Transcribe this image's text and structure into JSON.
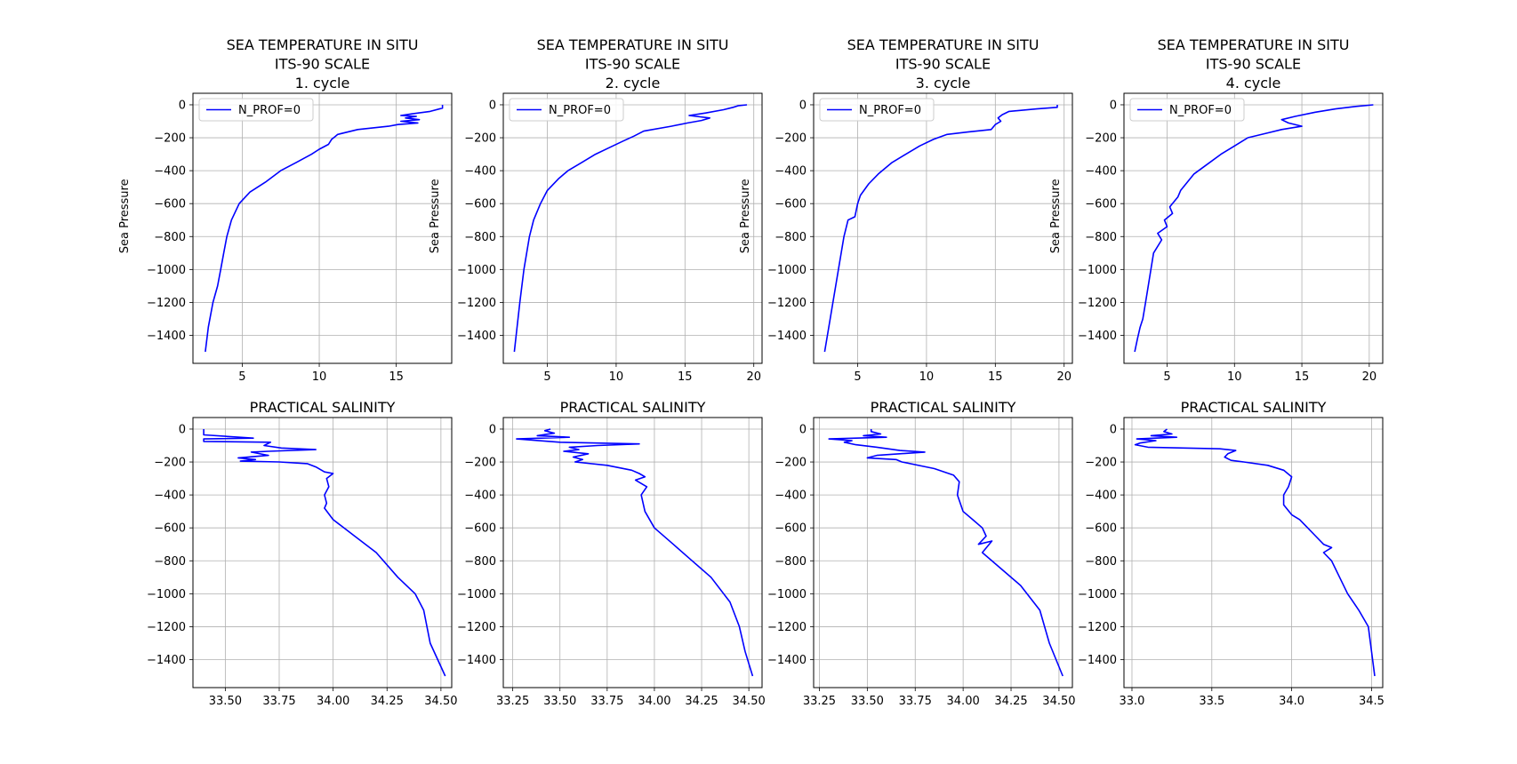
{
  "colors": {
    "line": "#0000ff",
    "grid": "#b0b0b0",
    "legend_border": "#cccccc"
  },
  "chart_data": [
    {
      "type": "line",
      "title": [
        "SEA TEMPERATURE IN SITU",
        "ITS-90 SCALE",
        "1. cycle"
      ],
      "ylabel": "Sea Pressure",
      "xlim": [
        1.8,
        18.6
      ],
      "ylim": [
        -1570,
        70
      ],
      "xticks": [
        5,
        10,
        15
      ],
      "xticklabels": [
        "5",
        "10",
        "15"
      ],
      "yticks": [
        0,
        -200,
        -400,
        -600,
        -800,
        -1000,
        -1200,
        -1400
      ],
      "yticklabels": [
        "0",
        "−200",
        "−400",
        "−600",
        "−800",
        "−1000",
        "−1200",
        "−1400"
      ],
      "legend": "N_PROF=0",
      "series": [
        {
          "name": "N_PROF=0",
          "x": [
            18.0,
            18.0,
            17.2,
            16.0,
            15.3,
            16.3,
            15.6,
            16.5,
            15.3,
            16.4,
            15.1,
            14.5,
            12.5,
            11.2,
            11.0,
            10.8,
            10.6,
            10.0,
            9.5,
            8.5,
            7.5,
            6.5,
            5.5,
            4.8,
            4.3,
            4.0,
            3.8,
            3.6,
            3.4,
            3.1,
            2.8,
            2.6
          ],
          "y": [
            0,
            -20,
            -40,
            -55,
            -65,
            -70,
            -80,
            -90,
            -100,
            -110,
            -120,
            -130,
            -150,
            -180,
            -195,
            -210,
            -240,
            -270,
            -300,
            -350,
            -400,
            -470,
            -530,
            -600,
            -700,
            -800,
            -900,
            -1000,
            -1100,
            -1200,
            -1350,
            -1500
          ]
        }
      ]
    },
    {
      "type": "line",
      "title": [
        "SEA TEMPERATURE IN SITU",
        "ITS-90 SCALE",
        "2. cycle"
      ],
      "ylabel": "Sea Pressure",
      "xlim": [
        1.8,
        20.6
      ],
      "ylim": [
        -1570,
        70
      ],
      "xticks": [
        5,
        10,
        15,
        20
      ],
      "xticklabels": [
        "5",
        "10",
        "15",
        "20"
      ],
      "yticks": [
        0,
        -200,
        -400,
        -600,
        -800,
        -1000,
        -1200,
        -1400
      ],
      "yticklabels": [
        "0",
        "−200",
        "−400",
        "−600",
        "−800",
        "−1000",
        "−1200",
        "−1400"
      ],
      "legend": "N_PROF=0",
      "series": [
        {
          "name": "N_PROF=0",
          "x": [
            19.5,
            18.9,
            18.5,
            17.8,
            16.5,
            15.3,
            16.8,
            16.2,
            15.2,
            14.0,
            12.0,
            11.3,
            10.5,
            9.5,
            8.5,
            7.5,
            6.5,
            5.8,
            5.0,
            4.5,
            4.0,
            3.7,
            3.5,
            3.3,
            3.0,
            2.8,
            2.6
          ],
          "y": [
            0,
            -5,
            -15,
            -30,
            -50,
            -65,
            -80,
            -95,
            -110,
            -130,
            -160,
            -190,
            -220,
            -260,
            -300,
            -350,
            -400,
            -450,
            -520,
            -600,
            -700,
            -800,
            -900,
            -1000,
            -1200,
            -1350,
            -1500
          ]
        }
      ]
    },
    {
      "type": "line",
      "title": [
        "SEA TEMPERATURE IN SITU",
        "ITS-90 SCALE",
        "3. cycle"
      ],
      "ylabel": "Sea Pressure",
      "xlim": [
        1.8,
        20.6
      ],
      "ylim": [
        -1570,
        70
      ],
      "xticks": [
        5,
        10,
        15,
        20
      ],
      "xticklabels": [
        "5",
        "10",
        "15",
        "20"
      ],
      "yticks": [
        0,
        -200,
        -400,
        -600,
        -800,
        -1000,
        -1200,
        -1400
      ],
      "yticklabels": [
        "0",
        "−200",
        "−400",
        "−600",
        "−800",
        "−1000",
        "−1200",
        "−1400"
      ],
      "legend": "N_PROF=0",
      "series": [
        {
          "name": "N_PROF=0",
          "x": [
            19.5,
            19.5,
            18.0,
            16.0,
            15.5,
            15.2,
            15.4,
            15.0,
            14.7,
            13.0,
            11.5,
            10.5,
            9.5,
            8.5,
            7.5,
            6.5,
            5.8,
            5.2,
            5.0,
            4.8,
            4.3,
            4.0,
            3.8,
            3.6,
            3.4,
            3.2,
            3.0,
            2.8,
            2.6
          ],
          "y": [
            0,
            -15,
            -25,
            -40,
            -60,
            -80,
            -100,
            -120,
            -150,
            -165,
            -180,
            -210,
            -250,
            -300,
            -350,
            -420,
            -480,
            -550,
            -600,
            -680,
            -700,
            -800,
            -900,
            -1000,
            -1100,
            -1200,
            -1300,
            -1400,
            -1500
          ]
        }
      ]
    },
    {
      "type": "line",
      "title": [
        "SEA TEMPERATURE IN SITU",
        "ITS-90 SCALE",
        "4. cycle"
      ],
      "ylabel": "Sea Pressure",
      "xlim": [
        1.8,
        21.0
      ],
      "ylim": [
        -1570,
        70
      ],
      "xticks": [
        5,
        10,
        15,
        20
      ],
      "xticklabels": [
        "5",
        "10",
        "15",
        "20"
      ],
      "yticks": [
        0,
        -200,
        -400,
        -600,
        -800,
        -1000,
        -1200,
        -1400
      ],
      "yticklabels": [
        "0",
        "−200",
        "−400",
        "−600",
        "−800",
        "−1000",
        "−1200",
        "−1400"
      ],
      "legend": "N_PROF=0",
      "series": [
        {
          "name": "N_PROF=0",
          "x": [
            20.3,
            19.0,
            17.5,
            16.0,
            14.5,
            13.5,
            14.0,
            15.0,
            13.5,
            12.5,
            11.0,
            10.0,
            9.0,
            8.0,
            7.0,
            6.5,
            6.0,
            5.8,
            5.2,
            5.4,
            4.8,
            5.0,
            4.3,
            4.6,
            4.0,
            3.8,
            3.6,
            3.4,
            3.2,
            3.0,
            2.8,
            2.6
          ],
          "y": [
            0,
            -10,
            -25,
            -45,
            -70,
            -90,
            -110,
            -130,
            -150,
            -170,
            -200,
            -250,
            -300,
            -360,
            -420,
            -470,
            -520,
            -560,
            -620,
            -660,
            -700,
            -740,
            -780,
            -820,
            -900,
            -1000,
            -1100,
            -1200,
            -1300,
            -1350,
            -1420,
            -1500
          ]
        }
      ]
    },
    {
      "type": "line",
      "title": [
        "PRACTICAL SALINITY"
      ],
      "xlim": [
        33.35,
        34.55
      ],
      "ylim": [
        -1570,
        70
      ],
      "xticks": [
        33.5,
        33.75,
        34.0,
        34.25,
        34.5
      ],
      "xticklabels": [
        "33.50",
        "33.75",
        "34.00",
        "34.25",
        "34.50"
      ],
      "yticks": [
        0,
        -200,
        -400,
        -600,
        -800,
        -1000,
        -1200,
        -1400
      ],
      "yticklabels": [
        "0",
        "−200",
        "−400",
        "−600",
        "−800",
        "−1000",
        "−1200",
        "−1400"
      ],
      "series": [
        {
          "name": "N_PROF=0",
          "x": [
            33.4,
            33.4,
            33.4,
            33.63,
            33.4,
            33.4,
            33.71,
            33.68,
            33.76,
            33.92,
            33.7,
            33.62,
            33.7,
            33.56,
            33.64,
            33.57,
            33.75,
            33.88,
            33.92,
            33.96,
            34.0,
            33.97,
            33.98,
            33.96,
            33.97,
            33.96,
            34.0,
            34.1,
            34.2,
            34.3,
            34.38,
            34.42,
            34.45,
            34.52
          ],
          "y": [
            0,
            -20,
            -35,
            -55,
            -60,
            -75,
            -80,
            -100,
            -115,
            -125,
            -135,
            -140,
            -160,
            -175,
            -185,
            -195,
            -200,
            -210,
            -230,
            -260,
            -270,
            -300,
            -350,
            -400,
            -450,
            -480,
            -550,
            -650,
            -750,
            -900,
            -1000,
            -1100,
            -1300,
            -1500
          ]
        }
      ]
    },
    {
      "type": "line",
      "title": [
        "PRACTICAL SALINITY"
      ],
      "xlim": [
        33.2,
        34.57
      ],
      "ylim": [
        -1570,
        70
      ],
      "xticks": [
        33.25,
        33.5,
        33.75,
        34.0,
        34.25,
        34.5
      ],
      "xticklabels": [
        "33.25",
        "33.50",
        "33.75",
        "34.00",
        "34.25",
        "34.50"
      ],
      "yticks": [
        0,
        -200,
        -400,
        -600,
        -800,
        -1000,
        -1200,
        -1400
      ],
      "yticklabels": [
        "0",
        "−200",
        "−400",
        "−600",
        "−800",
        "−1000",
        "−1200",
        "−1400"
      ],
      "series": [
        {
          "name": "N_PROF=0",
          "x": [
            33.45,
            33.42,
            33.47,
            33.38,
            33.55,
            33.27,
            33.5,
            33.92,
            33.7,
            33.55,
            33.6,
            33.52,
            33.65,
            33.57,
            33.62,
            33.58,
            33.75,
            33.88,
            33.92,
            33.95,
            33.9,
            33.96,
            33.93,
            33.95,
            34.0,
            34.1,
            34.2,
            34.3,
            34.4,
            34.45,
            34.48,
            34.52
          ],
          "y": [
            0,
            -10,
            -25,
            -40,
            -50,
            -60,
            -80,
            -90,
            -100,
            -110,
            -125,
            -135,
            -150,
            -170,
            -185,
            -200,
            -220,
            -250,
            -270,
            -290,
            -310,
            -350,
            -400,
            -500,
            -600,
            -700,
            -800,
            -900,
            -1050,
            -1200,
            -1350,
            -1500
          ]
        }
      ]
    },
    {
      "type": "line",
      "title": [
        "PRACTICAL SALINITY"
      ],
      "xlim": [
        33.22,
        34.57
      ],
      "ylim": [
        -1570,
        70
      ],
      "xticks": [
        33.25,
        33.5,
        33.75,
        34.0,
        34.25,
        34.5
      ],
      "xticklabels": [
        "33.25",
        "33.50",
        "33.75",
        "34.00",
        "34.25",
        "34.50"
      ],
      "yticks": [
        0,
        -200,
        -400,
        -600,
        -800,
        -1000,
        -1200,
        -1400
      ],
      "yticklabels": [
        "0",
        "−200",
        "−400",
        "−600",
        "−800",
        "−1000",
        "−1200",
        "−1400"
      ],
      "series": [
        {
          "name": "N_PROF=0",
          "x": [
            33.52,
            33.52,
            33.57,
            33.48,
            33.6,
            33.3,
            33.42,
            33.38,
            33.44,
            33.55,
            33.67,
            33.8,
            33.55,
            33.5,
            33.65,
            33.68,
            33.85,
            33.95,
            33.98,
            33.97,
            34.0,
            34.05,
            34.1,
            34.12,
            34.08,
            34.15,
            34.1,
            34.2,
            34.3,
            34.4,
            34.45,
            34.52
          ],
          "y": [
            0,
            -15,
            -30,
            -40,
            -50,
            -60,
            -70,
            -80,
            -95,
            -110,
            -130,
            -140,
            -160,
            -175,
            -185,
            -200,
            -240,
            -280,
            -320,
            -400,
            -500,
            -550,
            -600,
            -650,
            -700,
            -680,
            -750,
            -850,
            -950,
            -1100,
            -1300,
            -1500
          ]
        }
      ]
    },
    {
      "type": "line",
      "title": [
        "PRACTICAL SALINITY"
      ],
      "xlim": [
        32.95,
        34.57
      ],
      "ylim": [
        -1570,
        70
      ],
      "xticks": [
        33.0,
        33.5,
        34.0,
        34.5
      ],
      "xticklabels": [
        "33.0",
        "33.5",
        "34.0",
        "34.5"
      ],
      "yticks": [
        0,
        -200,
        -400,
        -600,
        -800,
        -1000,
        -1200,
        -1400
      ],
      "yticklabels": [
        "0",
        "−200",
        "−400",
        "−600",
        "−800",
        "−1000",
        "−1200",
        "−1400"
      ],
      "series": [
        {
          "name": "N_PROF=0",
          "x": [
            33.22,
            33.2,
            33.25,
            33.12,
            33.28,
            33.03,
            33.15,
            33.05,
            33.02,
            33.1,
            33.55,
            33.65,
            33.6,
            33.58,
            33.62,
            33.7,
            33.85,
            33.95,
            34.0,
            33.98,
            33.95,
            33.95,
            34.0,
            34.05,
            34.1,
            34.15,
            34.2,
            34.25,
            34.2,
            34.25,
            34.3,
            34.35,
            34.42,
            34.48,
            34.5,
            34.52
          ],
          "y": [
            0,
            -15,
            -30,
            -40,
            -50,
            -60,
            -70,
            -85,
            -95,
            -110,
            -120,
            -130,
            -150,
            -170,
            -190,
            -200,
            -220,
            -250,
            -290,
            -350,
            -400,
            -460,
            -520,
            -550,
            -600,
            -650,
            -700,
            -720,
            -750,
            -800,
            -900,
            -1000,
            -1100,
            -1200,
            -1350,
            -1500
          ]
        }
      ]
    }
  ]
}
